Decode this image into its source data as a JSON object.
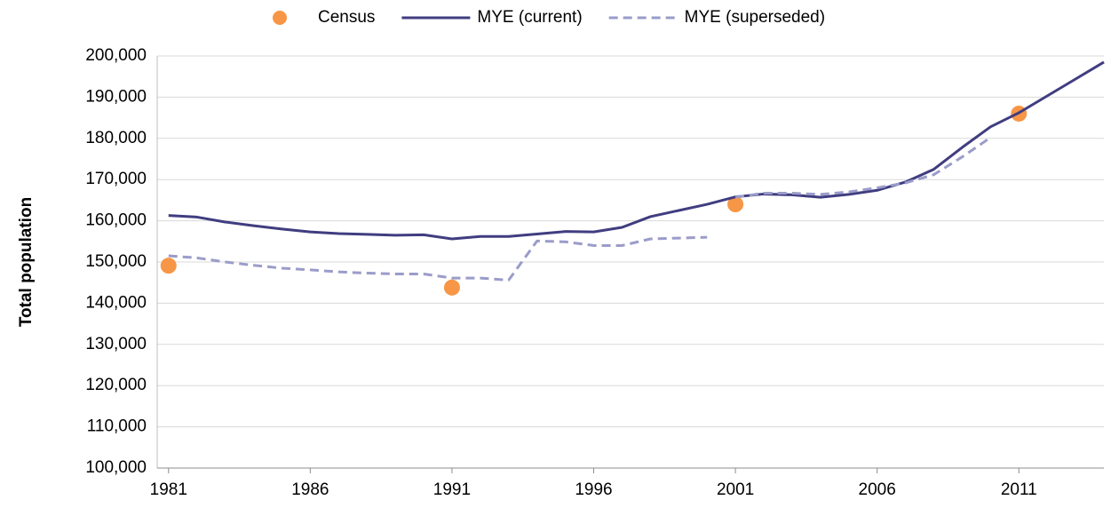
{
  "chart_data": {
    "type": "line",
    "y_label": "Total population",
    "x": [
      1981,
      1982,
      1983,
      1984,
      1985,
      1986,
      1987,
      1988,
      1989,
      1990,
      1991,
      1992,
      1993,
      1994,
      1995,
      1996,
      1997,
      1998,
      1999,
      2000,
      2001,
      2002,
      2003,
      2004,
      2005,
      2006,
      2007,
      2008,
      2009,
      2010,
      2011,
      2012,
      2013,
      2014
    ],
    "series": [
      {
        "name": "Census",
        "color": "#f79646",
        "style": "dots",
        "values": [
          149100,
          null,
          null,
          null,
          null,
          null,
          null,
          null,
          null,
          null,
          143800,
          null,
          null,
          null,
          null,
          null,
          null,
          null,
          null,
          null,
          164000,
          null,
          null,
          null,
          null,
          null,
          null,
          null,
          null,
          null,
          186000,
          null,
          null,
          null
        ]
      },
      {
        "name": "MYE (current)",
        "color": "#403d80",
        "style": "solid",
        "values": [
          161300,
          160900,
          159700,
          158800,
          158000,
          157300,
          156900,
          156700,
          156500,
          156600,
          155600,
          156200,
          156200,
          156800,
          157400,
          157300,
          158400,
          161000,
          162500,
          164000,
          165800,
          166500,
          166300,
          165700,
          166400,
          167400,
          169400,
          172500,
          177800,
          182800,
          186200,
          190300,
          194400,
          198500
        ]
      },
      {
        "name": "MYE (superseded)",
        "color": "#9a9cc9",
        "style": "dashed",
        "values": [
          151500,
          151000,
          150000,
          149200,
          148500,
          148100,
          147600,
          147300,
          147100,
          147100,
          146100,
          146100,
          145600,
          155100,
          154900,
          154000,
          154000,
          155600,
          155800,
          156000,
          null,
          null,
          null,
          null,
          null,
          null,
          null,
          null,
          null,
          null,
          null,
          null,
          null,
          null
        ]
      },
      {
        "name": "MYE (superseded)",
        "color": "#9a9cc9",
        "style": "dashed",
        "values": [
          null,
          null,
          null,
          null,
          null,
          null,
          null,
          null,
          null,
          null,
          null,
          null,
          null,
          null,
          null,
          null,
          null,
          null,
          null,
          null,
          165700,
          166700,
          166700,
          166400,
          167000,
          168000,
          169200,
          171200,
          175500,
          180200,
          null,
          null,
          null,
          null
        ]
      }
    ],
    "xlim": [
      1980.6,
      2014
    ],
    "xticks": [
      1981,
      1986,
      1991,
      1996,
      2001,
      2006,
      2011
    ],
    "ylim": [
      100000,
      200000
    ],
    "yticks": [
      {
        "value": 100000,
        "label": "100,000"
      },
      {
        "value": 110000,
        "label": "110,000"
      },
      {
        "value": 120000,
        "label": "120,000"
      },
      {
        "value": 130000,
        "label": "130,000"
      },
      {
        "value": 140000,
        "label": "140,000"
      },
      {
        "value": 150000,
        "label": "150,000"
      },
      {
        "value": 160000,
        "label": "160,000"
      },
      {
        "value": 170000,
        "label": "170,000"
      },
      {
        "value": 180000,
        "label": "180,000"
      },
      {
        "value": 190000,
        "label": "190,000"
      },
      {
        "value": 200000,
        "label": "200,000"
      }
    ],
    "grid": true,
    "legend": "top"
  }
}
